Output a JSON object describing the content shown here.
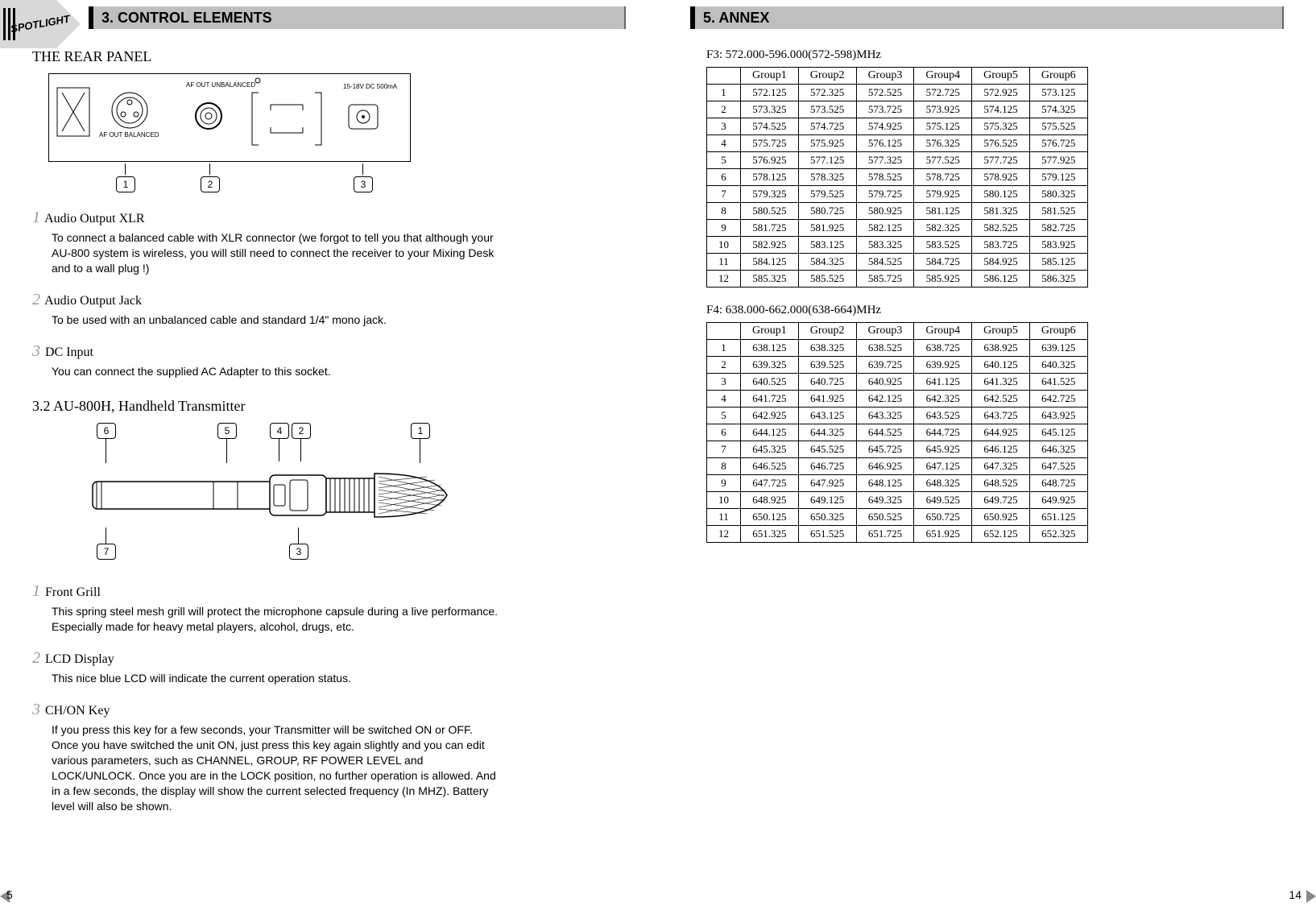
{
  "left": {
    "header": "3. CONTROL ELEMENTS",
    "section_rear": "THE REAR PANEL",
    "panel_labels": {
      "af_out_unbal": "AF OUT\nUNBALANCED",
      "af_out_bal": "AF OUT\nBALANCED",
      "dc": "15-18V DC\n500mA"
    },
    "callouts_rear": [
      "1",
      "2",
      "3"
    ],
    "items_rear": [
      {
        "n": "1",
        "title": "Audio Output XLR",
        "body": "To connect a balanced cable with XLR connector (we forgot to tell you that although your AU-800 system is wireless, you will still need to connect the receiver to your Mixing Desk and to a wall plug !)"
      },
      {
        "n": "2",
        "title": "Audio Output Jack",
        "body": "To be used with an unbalanced cable and standard 1/4\" mono jack."
      },
      {
        "n": "3",
        "title": "DC Input",
        "body": "You can connect the supplied AC Adapter to this socket."
      }
    ],
    "section_hh": "3.2 AU-800H, Handheld Transmitter",
    "callouts_hh_top": [
      "6",
      "5",
      "4",
      "2",
      "1"
    ],
    "callouts_hh_bot": [
      "7",
      "3"
    ],
    "items_hh": [
      {
        "n": "1",
        "title": "Front Grill",
        "body": "This spring steel mesh grill will protect the microphone capsule during a live performance. Especially made for heavy metal players, alcohol, drugs, etc."
      },
      {
        "n": "2",
        "title": "LCD Display",
        "body": "This nice blue LCD will indicate the current operation status."
      },
      {
        "n": "3",
        "title": "CH/ON Key",
        "body": "If you press this key for a few seconds, your Transmitter will be switched ON or OFF. Once you have switched the unit ON, just press this key again slightly and you can edit various parameters, such as CHANNEL, GROUP, RF POWER LEVEL and LOCK/UNLOCK. Once you are in the LOCK position, no further operation is allowed. And in a few seconds, the display will show the current selected frequency (In MHZ). Battery level will also be shown."
      }
    ],
    "page_num": "5"
  },
  "right": {
    "header": "5. ANNEX",
    "tables": [
      {
        "title": "F3: 572.000-596.000(572-598)MHz",
        "cols": [
          "",
          "Group1",
          "Group2",
          "Group3",
          "Group4",
          "Group5",
          "Group6"
        ],
        "rows": [
          [
            "1",
            "572.125",
            "572.325",
            "572.525",
            "572.725",
            "572.925",
            "573.125"
          ],
          [
            "2",
            "573.325",
            "573.525",
            "573.725",
            "573.925",
            "574.125",
            "574.325"
          ],
          [
            "3",
            "574.525",
            "574.725",
            "574.925",
            "575.125",
            "575.325",
            "575.525"
          ],
          [
            "4",
            "575.725",
            "575.925",
            "576.125",
            "576.325",
            "576.525",
            "576.725"
          ],
          [
            "5",
            "576.925",
            "577.125",
            "577.325",
            "577.525",
            "577.725",
            "577.925"
          ],
          [
            "6",
            "578.125",
            "578.325",
            "578.525",
            "578.725",
            "578.925",
            "579.125"
          ],
          [
            "7",
            "579.325",
            "579.525",
            "579.725",
            "579.925",
            "580.125",
            "580.325"
          ],
          [
            "8",
            "580.525",
            "580.725",
            "580.925",
            "581.125",
            "581.325",
            "581.525"
          ],
          [
            "9",
            "581.725",
            "581.925",
            "582.125",
            "582.325",
            "582.525",
            "582.725"
          ],
          [
            "10",
            "582.925",
            "583.125",
            "583.325",
            "583.525",
            "583.725",
            "583.925"
          ],
          [
            "11",
            "584.125",
            "584.325",
            "584.525",
            "584.725",
            "584.925",
            "585.125"
          ],
          [
            "12",
            "585.325",
            "585.525",
            "585.725",
            "585.925",
            "586.125",
            "586.325"
          ]
        ]
      },
      {
        "title": "F4: 638.000-662.000(638-664)MHz",
        "cols": [
          "",
          "Group1",
          "Group2",
          "Group3",
          "Group4",
          "Group5",
          "Group6"
        ],
        "rows": [
          [
            "1",
            "638.125",
            "638.325",
            "638.525",
            "638.725",
            "638.925",
            "639.125"
          ],
          [
            "2",
            "639.325",
            "639.525",
            "639.725",
            "639.925",
            "640.125",
            "640.325"
          ],
          [
            "3",
            "640.525",
            "640.725",
            "640.925",
            "641.125",
            "641.325",
            "641.525"
          ],
          [
            "4",
            "641.725",
            "641.925",
            "642.125",
            "642.325",
            "642.525",
            "642.725"
          ],
          [
            "5",
            "642.925",
            "643.125",
            "643.325",
            "643.525",
            "643.725",
            "643.925"
          ],
          [
            "6",
            "644.125",
            "644.325",
            "644.525",
            "644.725",
            "644.925",
            "645.125"
          ],
          [
            "7",
            "645.325",
            "645.525",
            "645.725",
            "645.925",
            "646.125",
            "646.325"
          ],
          [
            "8",
            "646.525",
            "646.725",
            "646.925",
            "647.125",
            "647.325",
            "647.525"
          ],
          [
            "9",
            "647.725",
            "647.925",
            "648.125",
            "648.325",
            "648.525",
            "648.725"
          ],
          [
            "10",
            "648.925",
            "649.125",
            "649.325",
            "649.525",
            "649.725",
            "649.925"
          ],
          [
            "11",
            "650.125",
            "650.325",
            "650.525",
            "650.725",
            "650.925",
            "651.125"
          ],
          [
            "12",
            "651.325",
            "651.525",
            "651.725",
            "651.925",
            "652.125",
            "652.325"
          ]
        ]
      }
    ],
    "page_num": "14"
  },
  "colors": {
    "header_bg": "#bfbfbf",
    "bignum": "#9a9a9a"
  }
}
